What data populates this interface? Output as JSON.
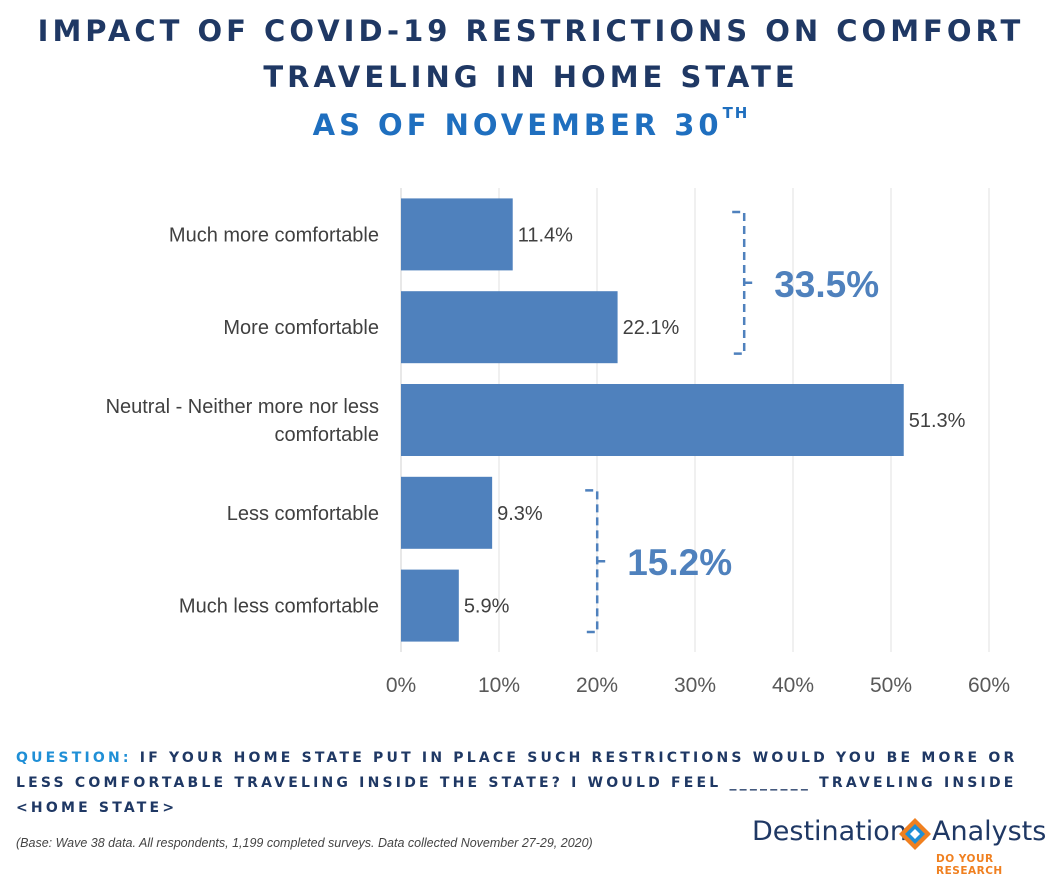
{
  "title_line1": "IMPACT OF COVID-19 RESTRICTIONS ON COMFORT",
  "title_line2": "TRAVELING IN HOME STATE",
  "title_line3": "AS OF NOVEMBER 30",
  "title_sup": "TH",
  "question_label": "QUESTION:",
  "question_text": "IF YOUR HOME STATE PUT IN PLACE SUCH RESTRICTIONS WOULD YOU BE MORE OR LESS COMFORTABLE TRAVELING INSIDE THE STATE? I WOULD FEEL ________ TRAVELING INSIDE <HOME STATE>",
  "base_note": "(Base: Wave 38 data. All respondents, 1,199 completed surveys. Data collected November 27-29, 2020)",
  "logo": {
    "left_word": "Destination",
    "right_word": "Analysts",
    "tagline": "DO YOUR RESEARCH"
  },
  "colors": {
    "bar": "#4f81bd",
    "title": "#1f3864",
    "subtitle": "#1f6fbf",
    "bracket": "#4f81bd",
    "logo_orange": "#f08020",
    "logo_blue": "#1f8fd6"
  },
  "chart_data": {
    "type": "bar",
    "orientation": "horizontal",
    "categories": [
      [
        "Much more comfortable"
      ],
      [
        "More comfortable"
      ],
      [
        "Neutral - Neither more nor less",
        "comfortable"
      ],
      [
        "Less comfortable"
      ],
      [
        "Much less comfortable"
      ]
    ],
    "values": [
      11.4,
      22.1,
      51.3,
      9.3,
      5.9
    ],
    "value_labels": [
      "11.4%",
      "22.1%",
      "51.3%",
      "9.3%",
      "5.9%"
    ],
    "xlim": [
      0,
      60
    ],
    "xticks": [
      0,
      10,
      20,
      30,
      40,
      50,
      60
    ],
    "xtick_labels": [
      "0%",
      "10%",
      "20%",
      "30%",
      "40%",
      "50%",
      "60%"
    ],
    "grid": true,
    "annotations": [
      {
        "label": "33.5%",
        "spans_categories": [
          0,
          1
        ],
        "bracket_at_value": 34
      },
      {
        "label": "15.2%",
        "spans_categories": [
          3,
          4
        ],
        "bracket_at_value": 19
      }
    ]
  }
}
